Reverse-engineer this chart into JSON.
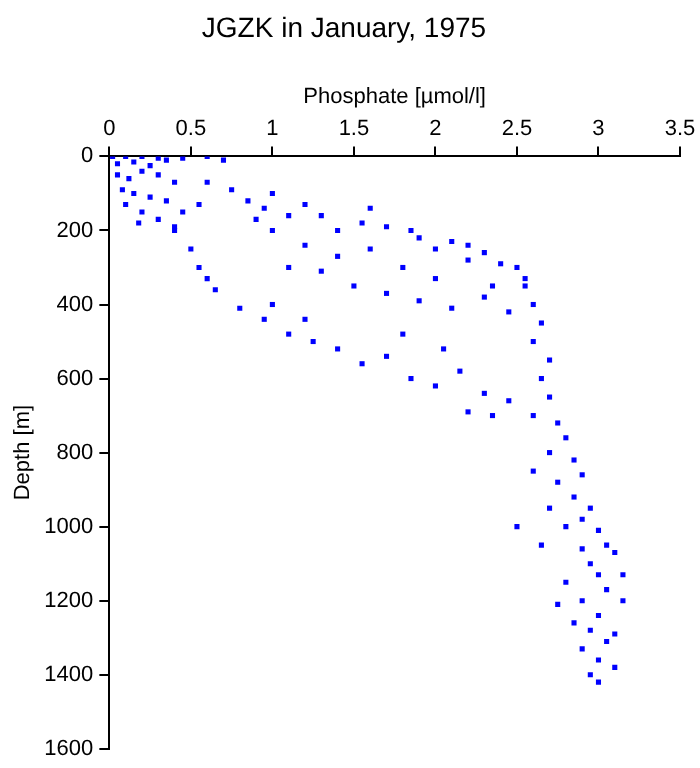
{
  "chart_data": {
    "type": "scatter",
    "title": "JGZK in January, 1975",
    "xlabel": "Phosphate [µmol/l]",
    "ylabel": "Depth [m]",
    "xlim": [
      0,
      3.5
    ],
    "xticks": [
      0,
      0.5,
      1,
      1.5,
      2,
      2.5,
      3,
      3.5
    ],
    "ylim": [
      1600,
      0
    ],
    "yticks": [
      0,
      200,
      400,
      600,
      800,
      1000,
      1200,
      1400,
      1600
    ],
    "grid": false,
    "legend": false,
    "marker": "square",
    "series": [
      {
        "color": "#0000ff",
        "x": [
          0.02,
          0.1,
          0.2,
          0.3,
          0.05,
          0.15,
          0.25,
          0.35,
          0.45,
          0.6,
          0.7,
          0.05,
          0.12,
          0.2,
          0.3,
          0.4,
          0.08,
          0.15,
          0.25,
          0.35,
          0.1,
          0.2,
          0.3,
          0.4,
          0.18,
          0.45,
          0.55,
          0.6,
          0.75,
          0.85,
          0.95,
          1.0,
          1.1,
          1.2,
          1.3,
          1.4,
          1.55,
          1.6,
          1.7,
          1.85,
          1.9,
          2.0,
          2.1,
          2.2,
          2.3,
          2.4,
          2.5,
          2.55,
          1.0,
          0.9,
          1.2,
          1.4,
          1.6,
          1.8,
          2.0,
          2.2,
          2.35,
          1.1,
          1.3,
          1.5,
          1.7,
          1.9,
          2.1,
          2.3,
          2.45,
          0.5,
          0.55,
          0.65,
          0.8,
          0.95,
          1.1,
          1.25,
          1.4,
          1.55,
          1.7,
          1.85,
          2.0,
          2.15,
          2.3,
          2.45,
          2.35,
          0.4,
          0.6,
          1.2,
          1.0,
          1.8,
          2.05,
          2.2,
          2.55,
          2.6,
          2.65,
          2.6,
          2.7,
          2.65,
          2.7,
          2.6,
          2.75,
          2.8,
          2.7,
          2.85,
          2.9,
          2.75,
          2.85,
          2.95,
          2.9,
          2.8,
          3.0,
          3.05,
          2.9,
          3.1,
          2.95,
          3.0,
          2.8,
          3.05,
          2.9,
          3.15,
          2.75,
          3.0,
          2.85,
          2.95,
          3.1,
          3.05,
          2.9,
          3.0,
          3.1,
          2.95,
          3.0,
          2.6,
          2.7,
          2.65,
          2.5,
          3.15
        ],
        "values": [
          0,
          0,
          0,
          5,
          20,
          15,
          25,
          10,
          5,
          0,
          10,
          50,
          60,
          40,
          50,
          70,
          90,
          100,
          110,
          120,
          130,
          150,
          170,
          190,
          180,
          150,
          130,
          70,
          90,
          120,
          140,
          100,
          160,
          130,
          160,
          200,
          180,
          140,
          190,
          200,
          220,
          250,
          230,
          240,
          260,
          290,
          300,
          330,
          200,
          170,
          240,
          270,
          250,
          300,
          330,
          280,
          350,
          300,
          310,
          350,
          370,
          390,
          410,
          380,
          420,
          250,
          300,
          360,
          410,
          440,
          480,
          500,
          520,
          560,
          540,
          600,
          620,
          580,
          640,
          660,
          700,
          200,
          330,
          440,
          400,
          480,
          520,
          690,
          350,
          400,
          450,
          500,
          550,
          600,
          650,
          700,
          720,
          760,
          800,
          820,
          860,
          880,
          920,
          950,
          980,
          1000,
          1010,
          1050,
          1060,
          1070,
          1100,
          1130,
          1150,
          1170,
          1200,
          1200,
          1210,
          1240,
          1260,
          1280,
          1290,
          1310,
          1330,
          1360,
          1380,
          1400,
          1420,
          850,
          950,
          1050,
          1000,
          1130
        ]
      }
    ]
  }
}
